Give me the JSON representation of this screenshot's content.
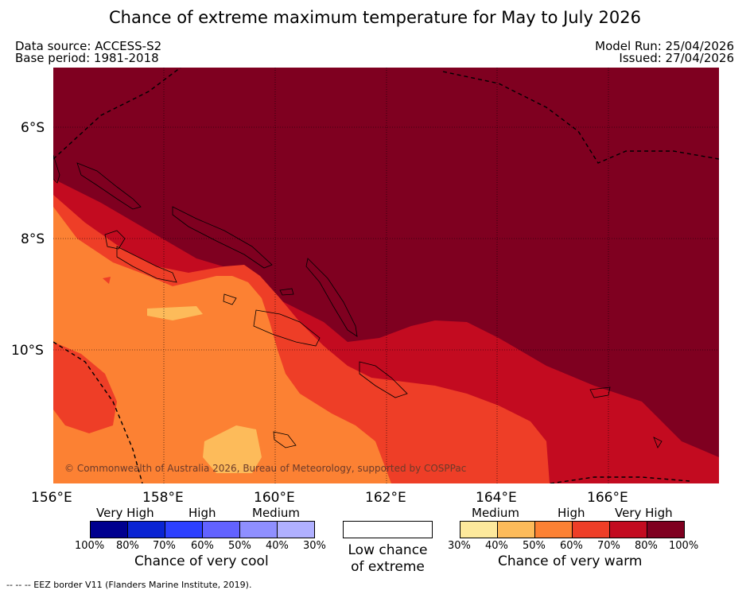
{
  "title": "Chance of extreme maximum temperature for May to July 2026",
  "header": {
    "data_source": "Data source: ACCESS-S2",
    "base_period": "Base period: 1981-2018",
    "model_run": "Model Run: 25/04/2026",
    "issued": "Issued: 27/04/2026"
  },
  "map": {
    "copyright": "© Commonwealth of Australia 2026, Bureau of Meteorology, supported by COSPPac",
    "lat_labels": [
      "6°S",
      "8°S",
      "10°S"
    ],
    "lon_labels": [
      "156°E",
      "158°E",
      "160°E",
      "162°E",
      "164°E",
      "166°E"
    ]
  },
  "legend": {
    "cool": {
      "category_labels": [
        "Very High",
        "High",
        "Medium"
      ],
      "percent_labels": [
        "100%",
        "80%",
        "70%",
        "60%",
        "50%",
        "40%",
        "30%"
      ],
      "colors": [
        "#00008f",
        "#0a24d3",
        "#2d40ff",
        "#6262ff",
        "#8f8fff",
        "#b0b0ff"
      ],
      "caption": "Chance of very cool"
    },
    "neutral": {
      "caption_line1": "Low chance",
      "caption_line2": "of extreme",
      "color": "#ffffff"
    },
    "warm": {
      "category_labels": [
        "Medium",
        "High",
        "Very High"
      ],
      "percent_labels": [
        "30%",
        "40%",
        "50%",
        "60%",
        "70%",
        "80%",
        "100%"
      ],
      "colors": [
        "#fde99c",
        "#fdbb5a",
        "#fc8133",
        "#ee3e27",
        "#c30b20",
        "#7f0020"
      ],
      "caption": "Chance of very warm"
    }
  },
  "footer": "--  --  -- EEZ border V11 (Flanders Marine Institute, 2019)."
}
